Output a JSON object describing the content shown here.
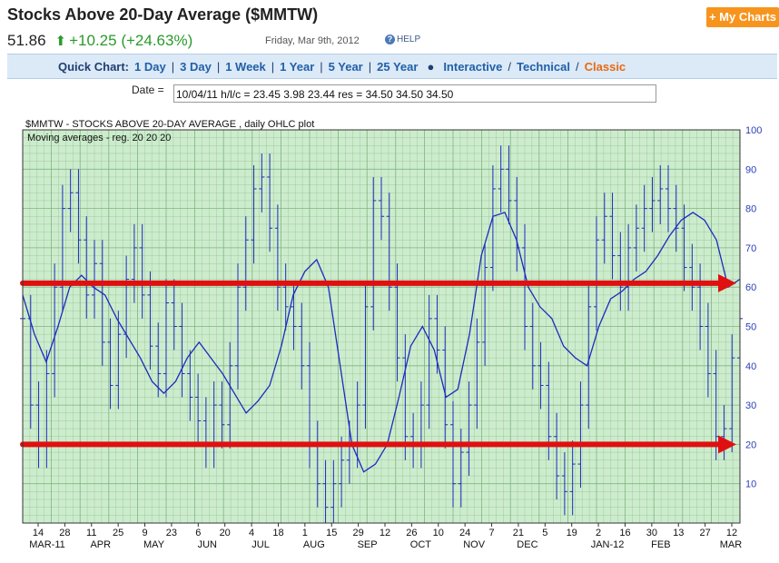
{
  "header": {
    "title": "Stocks Above 20-Day Average ($MMTW)",
    "my_charts": "+ My Charts",
    "price": "51.86",
    "change": "+10.25 (+24.63%)",
    "date": "Friday, Mar 9th, 2012",
    "help": "HELP"
  },
  "quick_chart": {
    "label": "Quick Chart:",
    "periods": [
      "1 Day",
      "3 Day",
      "1 Week",
      "1 Year",
      "5 Year",
      "25 Year"
    ],
    "interactive": "Interactive",
    "technical": "Technical",
    "classic": "Classic"
  },
  "date_field": {
    "label": "Date =",
    "value": "10/04/11 h/l/c = 23.45 3.98 23.44 res = 34.50 34.50 34.50"
  },
  "colors": {
    "price": "#1c2bbf",
    "grid_bg": "#cdeccd",
    "grid_line": "#7fb57f",
    "arrow": "#e01010"
  },
  "chart_data": {
    "type": "line",
    "title": "$MMTW - STOCKS ABOVE 20-DAY AVERAGE , daily OHLC plot",
    "subtitle": "Moving averages - reg. 20 20 20",
    "ylim": [
      0,
      100
    ],
    "y_ticks": [
      10,
      20,
      30,
      40,
      50,
      60,
      70,
      80,
      90,
      100
    ],
    "x_day_ticks": [
      "14",
      "28",
      "11",
      "25",
      "9",
      "23",
      "6",
      "20",
      "4",
      "18",
      "1",
      "15",
      "29",
      "12",
      "26",
      "10",
      "24",
      "7",
      "21",
      "5",
      "19",
      "2",
      "16",
      "30",
      "13",
      "27",
      "12"
    ],
    "x_month_ticks": [
      "MAR-11",
      "APR",
      "MAY",
      "JUN",
      "JUL",
      "AUG",
      "SEP",
      "OCT",
      "NOV",
      "DEC",
      "JAN-12",
      "FEB",
      "MAR"
    ],
    "ohlc_close_series": [
      52,
      30,
      20,
      38,
      60,
      80,
      84,
      72,
      58,
      66,
      46,
      35,
      48,
      62,
      70,
      58,
      45,
      38,
      56,
      50,
      38,
      32,
      26,
      20,
      30,
      25,
      40,
      60,
      72,
      85,
      88,
      75,
      60,
      55,
      50,
      40,
      20,
      10,
      4,
      10,
      16,
      20,
      30,
      55,
      82,
      78,
      60,
      42,
      22,
      20,
      30,
      52,
      44,
      25,
      10,
      18,
      30,
      46,
      65,
      85,
      90,
      82,
      70,
      50,
      40,
      35,
      22,
      12,
      8,
      15,
      30,
      55,
      72,
      78,
      68,
      60,
      70,
      75,
      80,
      82,
      85,
      80,
      75,
      65,
      60,
      50,
      38,
      22,
      24,
      42,
      52
    ],
    "moving_average_series": [
      58,
      48,
      41,
      50,
      60,
      63,
      60,
      58,
      52,
      47,
      42,
      36,
      33,
      36,
      42,
      46,
      42,
      38,
      33,
      28,
      31,
      35,
      45,
      58,
      64,
      67,
      60,
      40,
      20,
      13,
      15,
      20,
      32,
      45,
      50,
      44,
      32,
      34,
      48,
      68,
      78,
      79,
      72,
      60,
      55,
      52,
      45,
      42,
      40,
      50,
      57,
      59,
      62,
      64,
      68,
      73,
      77,
      79,
      77,
      72,
      60,
      62
    ],
    "reference_lines": [
      61,
      20
    ]
  }
}
